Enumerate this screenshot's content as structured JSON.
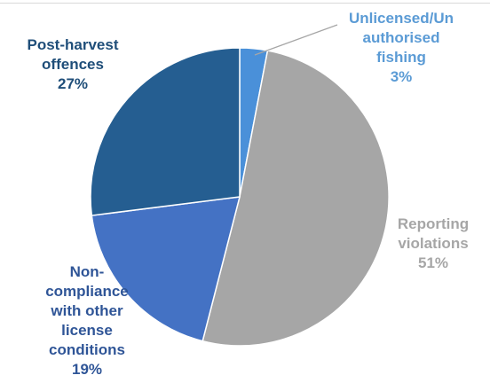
{
  "chart_data": {
    "type": "pie",
    "start_angle_deg": 0,
    "direction": "clockwise",
    "slices": [
      {
        "label": "Unlicensed/Un\nauthorised\nfishing",
        "percent_label": "3%",
        "value": 3,
        "color": "#4a90d9",
        "label_color": "#5b9bd5"
      },
      {
        "label": "Reporting\nviolations",
        "percent_label": "51%",
        "value": 51,
        "color": "#a6a6a6",
        "label_color": "#a6a6a6"
      },
      {
        "label": "Non-\ncompliance\nwith other\nlicense\nconditions",
        "percent_label": "19%",
        "value": 19,
        "color": "#4472c4",
        "label_color": "#2f5597"
      },
      {
        "label": "Post-harvest\noffences",
        "percent_label": "27%",
        "value": 27,
        "color": "#255e91",
        "label_color": "#1f4e79"
      }
    ]
  }
}
